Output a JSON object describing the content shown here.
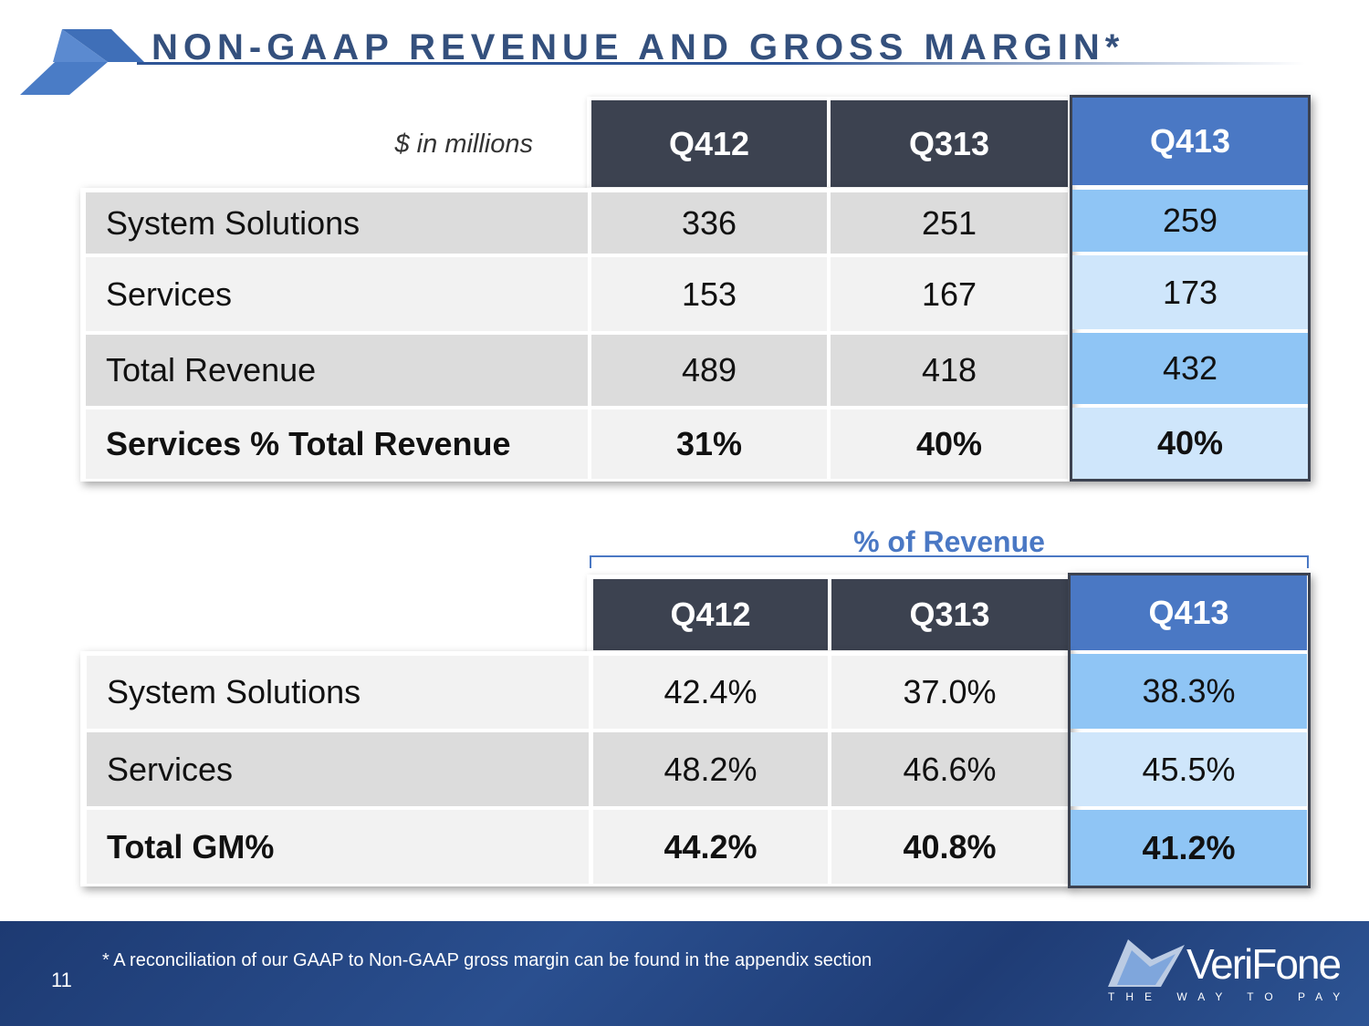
{
  "title": "NON-GAAP REVENUE AND GROSS MARGIN*",
  "revenue_table": {
    "units_label": "$ in millions",
    "headers": [
      "Q412",
      "Q313",
      "Q413"
    ],
    "rows": [
      {
        "label": "System Solutions",
        "values": [
          "336",
          "251",
          "259"
        ],
        "bold": false
      },
      {
        "label": "Services",
        "values": [
          "153",
          "167",
          "173"
        ],
        "bold": false
      },
      {
        "label": "Total Revenue",
        "values": [
          "489",
          "418",
          "432"
        ],
        "bold": false
      },
      {
        "label": "Services % Total Revenue",
        "values": [
          "31%",
          "40%",
          "40%"
        ],
        "bold": true
      }
    ]
  },
  "margin_table": {
    "group_label": "% of Revenue",
    "headers": [
      "Q412",
      "Q313",
      "Q413"
    ],
    "rows": [
      {
        "label": "System Solutions",
        "values": [
          "42.4%",
          "37.0%",
          "38.3%"
        ],
        "bold": false
      },
      {
        "label": "Services",
        "values": [
          "48.2%",
          "46.6%",
          "45.5%"
        ],
        "bold": false
      },
      {
        "label": "Total GM%",
        "values": [
          "44.2%",
          "40.8%",
          "41.2%"
        ],
        "bold": true
      }
    ]
  },
  "footer": {
    "page_number": "11",
    "footnote": "* A reconciliation of our GAAP to Non-GAAP gross margin can be found in the appendix section",
    "brand_name": "VeriFone",
    "brand_tagline": "THE WAY TO PAY"
  },
  "colors": {
    "title": "#34507d",
    "header_dark": "#3c4250",
    "header_highlight": "#4a78c4",
    "highlight_row_a": "#8fc5f5",
    "highlight_row_b": "#cfe6fb",
    "footer_blue": "#1f3c75"
  }
}
